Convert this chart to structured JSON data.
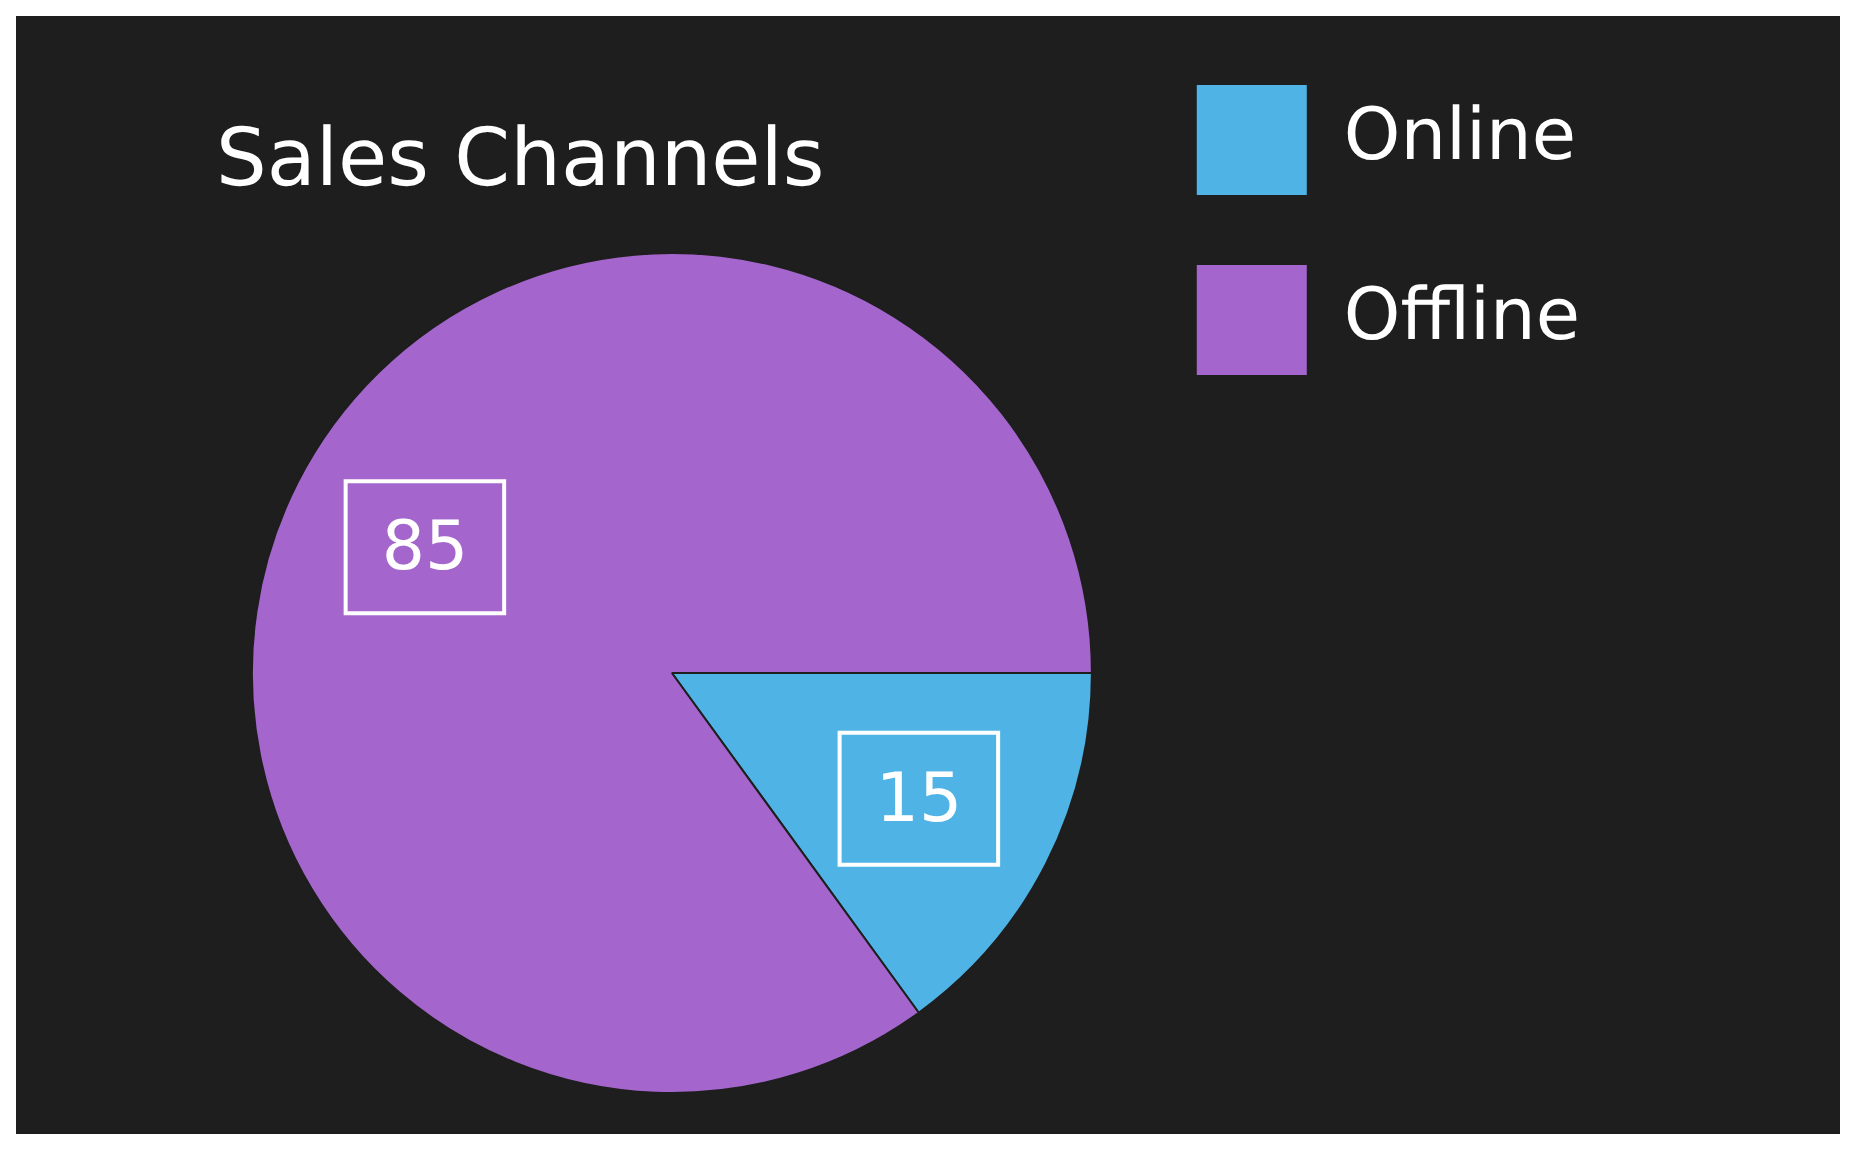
{
  "chart_data": {
    "type": "pie",
    "title": "Sales Channels",
    "categories": [
      "Online",
      "Offline"
    ],
    "values": [
      15,
      85
    ],
    "colors": [
      "#4fb3e6",
      "#a466cc"
    ],
    "data_labels": true,
    "legend": "right"
  }
}
